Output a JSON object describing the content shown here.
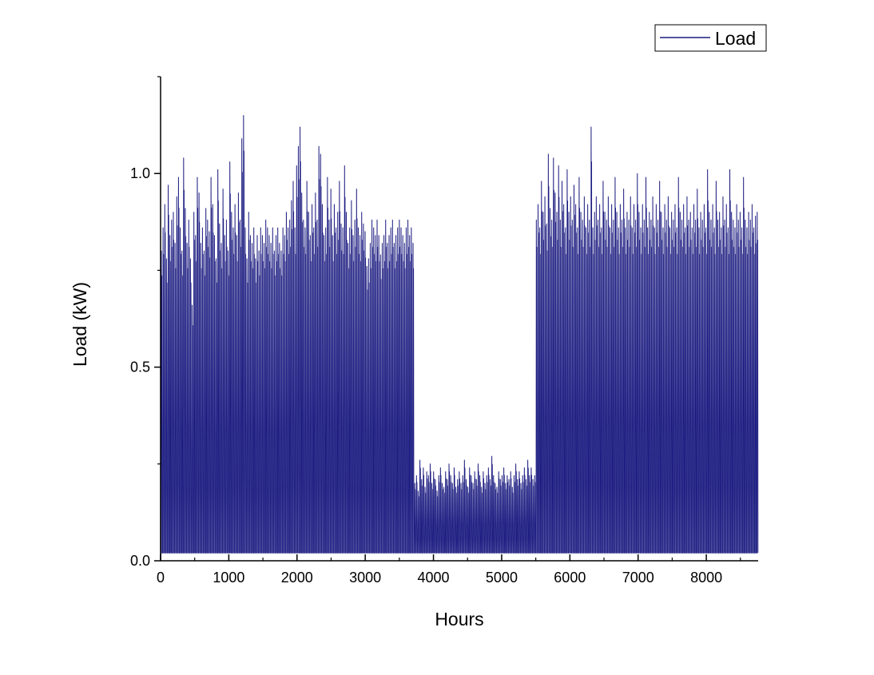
{
  "chart_data": {
    "type": "line",
    "title": "",
    "xlabel": "Hours",
    "ylabel": "Load (kW)",
    "xlim": [
      0,
      8760
    ],
    "ylim": [
      0,
      1.25
    ],
    "xticks": [
      "0",
      "1000",
      "2000",
      "3000",
      "4000",
      "5000",
      "6000",
      "7000",
      "8000"
    ],
    "xtick_values": [
      0,
      1000,
      2000,
      3000,
      4000,
      5000,
      6000,
      7000,
      8000
    ],
    "yticks": [
      "0.0",
      "0.5",
      "1.0"
    ],
    "ytick_values": [
      0.0,
      0.5,
      1.0
    ],
    "grid": false,
    "legend_position": "top-right",
    "series": [
      {
        "name": "Load",
        "color": "#1a1a80",
        "sampling": "approximate daily peak (kW) for each day of the year, 365 values; hourly load falls to ~0 between peaks",
        "daily_peak": [
          0.8,
          0.86,
          0.92,
          0.78,
          0.97,
          0.84,
          0.88,
          0.9,
          0.82,
          0.94,
          0.99,
          0.86,
          0.8,
          1.04,
          0.91,
          0.82,
          0.88,
          0.78,
          0.66,
          0.9,
          0.84,
          0.99,
          0.95,
          0.82,
          0.86,
          0.8,
          0.91,
          0.88,
          0.85,
          0.99,
          0.92,
          0.84,
          0.78,
          1.01,
          0.87,
          0.82,
          0.96,
          0.84,
          0.88,
          0.8,
          1.03,
          0.9,
          0.86,
          0.92,
          0.84,
          0.95,
          0.88,
          1.09,
          1.15,
          0.86,
          0.78,
          0.9,
          0.84,
          0.82,
          0.86,
          0.78,
          0.84,
          0.8,
          0.86,
          0.84,
          0.82,
          0.88,
          0.86,
          0.84,
          0.82,
          0.86,
          0.8,
          0.84,
          0.86,
          0.82,
          0.8,
          0.86,
          0.84,
          0.9,
          0.86,
          0.88,
          0.93,
          0.98,
          0.86,
          1.02,
          1.07,
          1.12,
          0.95,
          0.88,
          0.86,
          0.98,
          0.9,
          0.84,
          0.92,
          0.86,
          0.95,
          0.88,
          1.07,
          1.05,
          0.92,
          0.84,
          0.86,
          0.99,
          0.88,
          0.96,
          0.84,
          0.92,
          0.86,
          0.9,
          0.98,
          0.87,
          0.86,
          1.02,
          0.9,
          0.82,
          0.86,
          0.93,
          0.84,
          0.88,
          0.96,
          0.86,
          0.84,
          0.9,
          0.87,
          0.85,
          0.76,
          0.78,
          0.82,
          0.88,
          0.86,
          0.84,
          0.88,
          0.84,
          0.79,
          0.82,
          0.84,
          0.88,
          0.82,
          0.84,
          0.86,
          0.88,
          0.82,
          0.84,
          0.86,
          0.88,
          0.86,
          0.84,
          0.82,
          0.86,
          0.88,
          0.84,
          0.86,
          0.82,
          0.2,
          0.22,
          0.18,
          0.26,
          0.21,
          0.24,
          0.19,
          0.23,
          0.22,
          0.25,
          0.2,
          0.23,
          0.21,
          0.18,
          0.22,
          0.24,
          0.2,
          0.19,
          0.23,
          0.21,
          0.25,
          0.22,
          0.2,
          0.24,
          0.19,
          0.21,
          0.23,
          0.2,
          0.22,
          0.26,
          0.21,
          0.19,
          0.24,
          0.22,
          0.2,
          0.23,
          0.21,
          0.25,
          0.22,
          0.19,
          0.23,
          0.2,
          0.22,
          0.24,
          0.21,
          0.27,
          0.22,
          0.2,
          0.19,
          0.23,
          0.21,
          0.22,
          0.24,
          0.2,
          0.22,
          0.21,
          0.23,
          0.19,
          0.22,
          0.25,
          0.21,
          0.23,
          0.2,
          0.22,
          0.24,
          0.21,
          0.26,
          0.22,
          0.24,
          0.21,
          0.22,
          0.88,
          0.92,
          0.86,
          0.98,
          0.9,
          0.94,
          0.87,
          1.05,
          0.91,
          0.88,
          1.04,
          0.95,
          0.9,
          1.02,
          0.88,
          0.98,
          0.92,
          0.86,
          1.01,
          0.9,
          0.94,
          0.88,
          0.97,
          0.92,
          0.86,
          0.99,
          0.9,
          0.88,
          0.94,
          0.86,
          0.92,
          0.88,
          1.12,
          0.86,
          0.9,
          0.94,
          0.88,
          0.92,
          0.86,
          0.98,
          0.9,
          0.88,
          0.94,
          0.86,
          0.92,
          0.88,
          0.99,
          0.9,
          0.86,
          0.92,
          0.88,
          0.96,
          0.86,
          0.9,
          0.88,
          0.94,
          0.86,
          0.92,
          0.88,
          1.0,
          0.9,
          0.86,
          0.92,
          0.88,
          0.99,
          0.86,
          0.9,
          0.88,
          0.94,
          0.86,
          0.92,
          0.88,
          0.98,
          0.9,
          0.86,
          0.92,
          0.88,
          0.94,
          0.86,
          0.9,
          0.88,
          0.92,
          0.86,
          0.99,
          0.9,
          0.88,
          0.92,
          0.86,
          0.94,
          0.88,
          0.9,
          0.86,
          0.92,
          0.88,
          0.96,
          0.86,
          0.9,
          0.88,
          0.92,
          0.86,
          1.01,
          0.9,
          0.88,
          0.92,
          0.86,
          0.98,
          0.88,
          0.9,
          0.86,
          0.94,
          0.88,
          0.92,
          0.86,
          1.01,
          0.9,
          0.88,
          0.86,
          0.92,
          0.88,
          0.9,
          0.86,
          0.99,
          0.88,
          0.86,
          0.9,
          0.88,
          0.92,
          0.86,
          0.89,
          0.9
        ]
      }
    ]
  }
}
